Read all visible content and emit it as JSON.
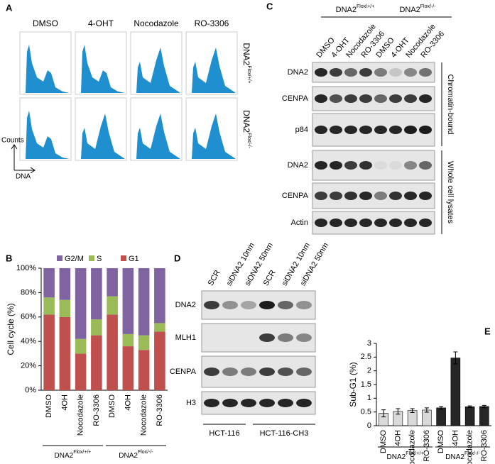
{
  "panel_labels": [
    "A",
    "B",
    "C",
    "D",
    "E"
  ],
  "panel_a": {
    "columns": [
      "DMSO",
      "4-OHT",
      "Nocodazole",
      "RO-3306"
    ],
    "rows": [
      {
        "text": "DNA2",
        "sup": "Flox/+/+"
      },
      {
        "text": "DNA2",
        "sup": "Flox/-/-"
      }
    ],
    "y_axis": "Counts",
    "x_axis": "DNA"
  },
  "panel_c": {
    "groups": [
      {
        "text": "DNA2",
        "sup": "Flox/+/+"
      },
      {
        "text": "DNA2",
        "sup": "Flox/-/-"
      }
    ],
    "lanes": [
      "DMSO",
      "4-OHT",
      "Nocodazole",
      "RO-3306",
      "DMSO",
      "4-OHT",
      "Nocodazole",
      "RO-3306"
    ],
    "rows": [
      "DNA2",
      "CENPA",
      "p84",
      "DNA2",
      "CENPA",
      "Actin"
    ],
    "sections": [
      "Chromatin-bound",
      "Whole cell lysates"
    ]
  },
  "panel_d": {
    "lanes": [
      "SCR",
      "siDNA2 10nm",
      "siDNA2 50nm",
      "SCR",
      "siDNA2 10nm",
      "siDNA2 50nm"
    ],
    "rows": [
      "DNA2",
      "MLH1",
      "CENPA",
      "H3"
    ],
    "cell_lines": [
      "HCT-116",
      "HCT-116-CH3"
    ]
  },
  "chart_data": [
    {
      "type": "stacked_bar",
      "ylabel": "Cell cycle (%)",
      "categories": [
        "DMSO",
        "4OH",
        "Nocodazole",
        "RO-3306",
        "DMSO",
        "4OH",
        "Nocodazole",
        "RO-3306"
      ],
      "groups": [
        {
          "text": "DNA2",
          "sup": "Flox/+/+"
        },
        {
          "text": "DNA2",
          "sup": "Flox/-/-"
        }
      ],
      "series": [
        {
          "name": "G1",
          "color": "#c0504d",
          "values": [
            62,
            60,
            30,
            45,
            62,
            36,
            33,
            48
          ]
        },
        {
          "name": "S",
          "color": "#9bbb59",
          "values": [
            14,
            14,
            12,
            13,
            15,
            10,
            12,
            7
          ]
        },
        {
          "name": "G2/M",
          "color": "#8064a2",
          "values": [
            24,
            26,
            58,
            42,
            23,
            54,
            55,
            45
          ]
        }
      ],
      "ylim": [
        0,
        100
      ],
      "yticks": [
        {
          "value": 0,
          "label": "0%"
        },
        {
          "value": 20,
          "label": "20%"
        },
        {
          "value": 40,
          "label": "40%"
        },
        {
          "value": 60,
          "label": "60%"
        },
        {
          "value": 80,
          "label": "80%"
        },
        {
          "value": 100,
          "label": "100%"
        }
      ]
    },
    {
      "type": "bar",
      "ylabel": "Sub-G1 (%)",
      "categories": [
        "DMSO",
        "4OH",
        "Nocodazole",
        "RO-3306",
        "DMSO",
        "4OH",
        "Nocodazole",
        "RO-3306"
      ],
      "groups": [
        {
          "text": "DNA2",
          "sup": "Flox/+/+"
        },
        {
          "text": "DNA2",
          "sup": "Flox/-/-"
        }
      ],
      "values": [
        0.45,
        0.52,
        0.55,
        0.57,
        0.65,
        2.47,
        0.69,
        0.7
      ],
      "errors": [
        0.13,
        0.1,
        0.07,
        0.08,
        0.05,
        0.22,
        0.03,
        0.04
      ],
      "colors": [
        "#d9d9d9",
        "#d9d9d9",
        "#d9d9d9",
        "#d9d9d9",
        "#262626",
        "#262626",
        "#262626",
        "#262626"
      ],
      "ylim": [
        0,
        3
      ],
      "yticks": [
        0,
        0.5,
        1,
        1.5,
        2,
        2.5,
        3
      ]
    }
  ]
}
